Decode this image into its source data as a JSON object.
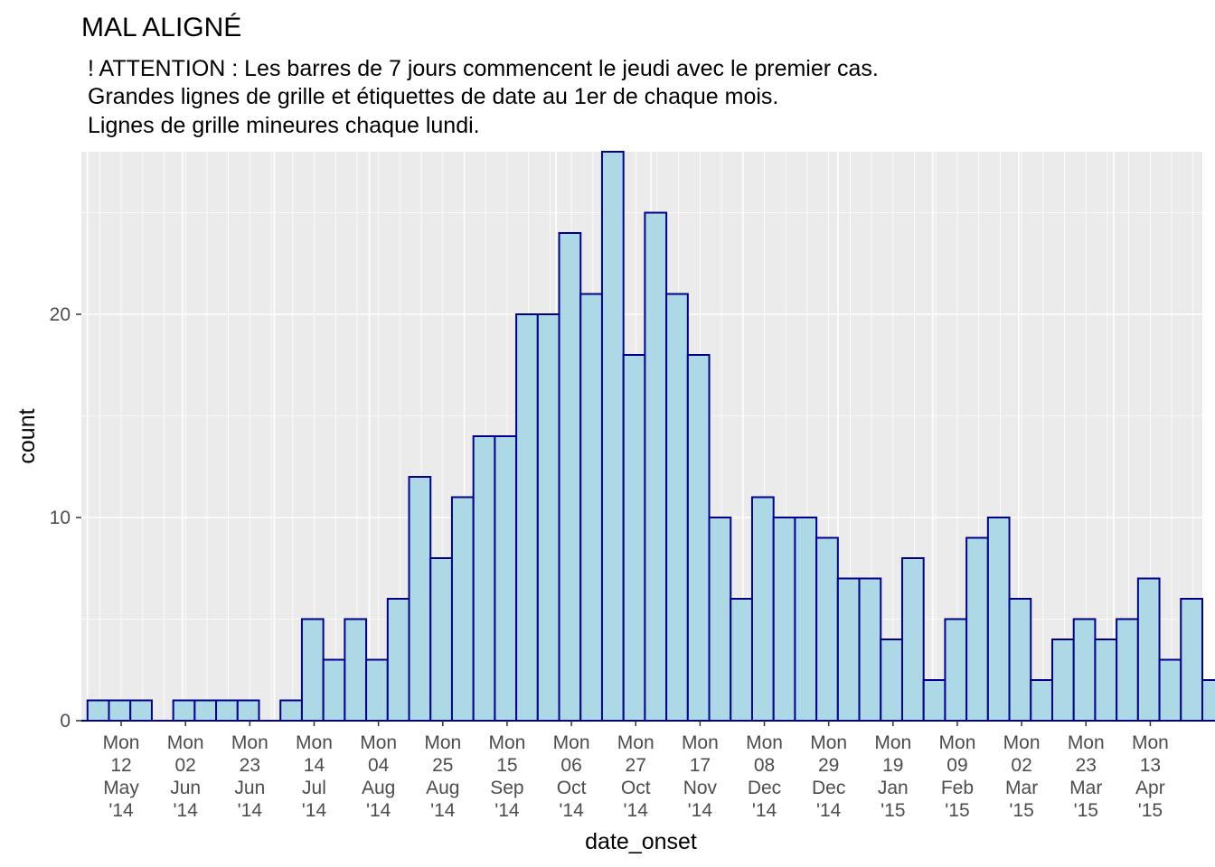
{
  "chart_data": {
    "type": "bar",
    "title": "MAL ALIGNÉ",
    "subtitle_lines": [
      "! ATTENTION : Les barres de 7 jours commencent le jeudi avec le premier cas.",
      "Grandes lignes de grille et étiquettes de date au 1er de chaque mois.",
      "Lignes de grille mineures chaque lundi."
    ],
    "xlabel": "date_onset",
    "ylabel": "count",
    "ylim": [
      0,
      28
    ],
    "y_ticks": [
      0,
      10,
      20
    ],
    "x_range": [
      "2014-04-29",
      "2015-04-30"
    ],
    "bin_days": 7,
    "bins_start": "2014-05-01",
    "values": [
      1,
      1,
      1,
      0,
      1,
      1,
      1,
      1,
      0,
      1,
      5,
      3,
      5,
      3,
      6,
      12,
      8,
      11,
      14,
      14,
      20,
      20,
      24,
      21,
      28,
      18,
      25,
      21,
      18,
      10,
      6,
      11,
      10,
      10,
      9,
      7,
      7,
      4,
      8,
      2,
      5,
      9,
      10,
      6,
      2,
      4,
      5,
      4,
      5,
      7,
      3,
      6,
      2
    ],
    "x_tick_dates": [
      "2014-05-12",
      "2014-06-02",
      "2014-06-23",
      "2014-07-14",
      "2014-08-04",
      "2014-08-25",
      "2014-09-15",
      "2014-10-06",
      "2014-10-27",
      "2014-11-17",
      "2014-12-08",
      "2014-12-29",
      "2015-01-19",
      "2015-02-09",
      "2015-03-02",
      "2015-03-23",
      "2015-04-13"
    ],
    "x_tick_labels": [
      [
        "Mon",
        "12",
        "May",
        "'14"
      ],
      [
        "Mon",
        "02",
        "Jun",
        "'14"
      ],
      [
        "Mon",
        "23",
        "Jun",
        "'14"
      ],
      [
        "Mon",
        "14",
        "Jul",
        "'14"
      ],
      [
        "Mon",
        "04",
        "Aug",
        "'14"
      ],
      [
        "Mon",
        "25",
        "Aug",
        "'14"
      ],
      [
        "Mon",
        "15",
        "Sep",
        "'14"
      ],
      [
        "Mon",
        "06",
        "Oct",
        "'14"
      ],
      [
        "Mon",
        "27",
        "Oct",
        "'14"
      ],
      [
        "Mon",
        "17",
        "Nov",
        "'14"
      ],
      [
        "Mon",
        "08",
        "Dec",
        "'14"
      ],
      [
        "Mon",
        "29",
        "Dec",
        "'14"
      ],
      [
        "Mon",
        "19",
        "Jan",
        "'15"
      ],
      [
        "Mon",
        "09",
        "Feb",
        "'15"
      ],
      [
        "Mon",
        "02",
        "Mar",
        "'15"
      ],
      [
        "Mon",
        "23",
        "Mar",
        "'15"
      ],
      [
        "Mon",
        "13",
        "Apr",
        "'15"
      ]
    ],
    "major_grid": "1st of each month",
    "minor_grid": "every Monday",
    "colors": {
      "bar_fill": "#add8e6",
      "bar_outline": "#00008b",
      "panel": "#ebebeb",
      "grid": "#ffffff"
    }
  }
}
